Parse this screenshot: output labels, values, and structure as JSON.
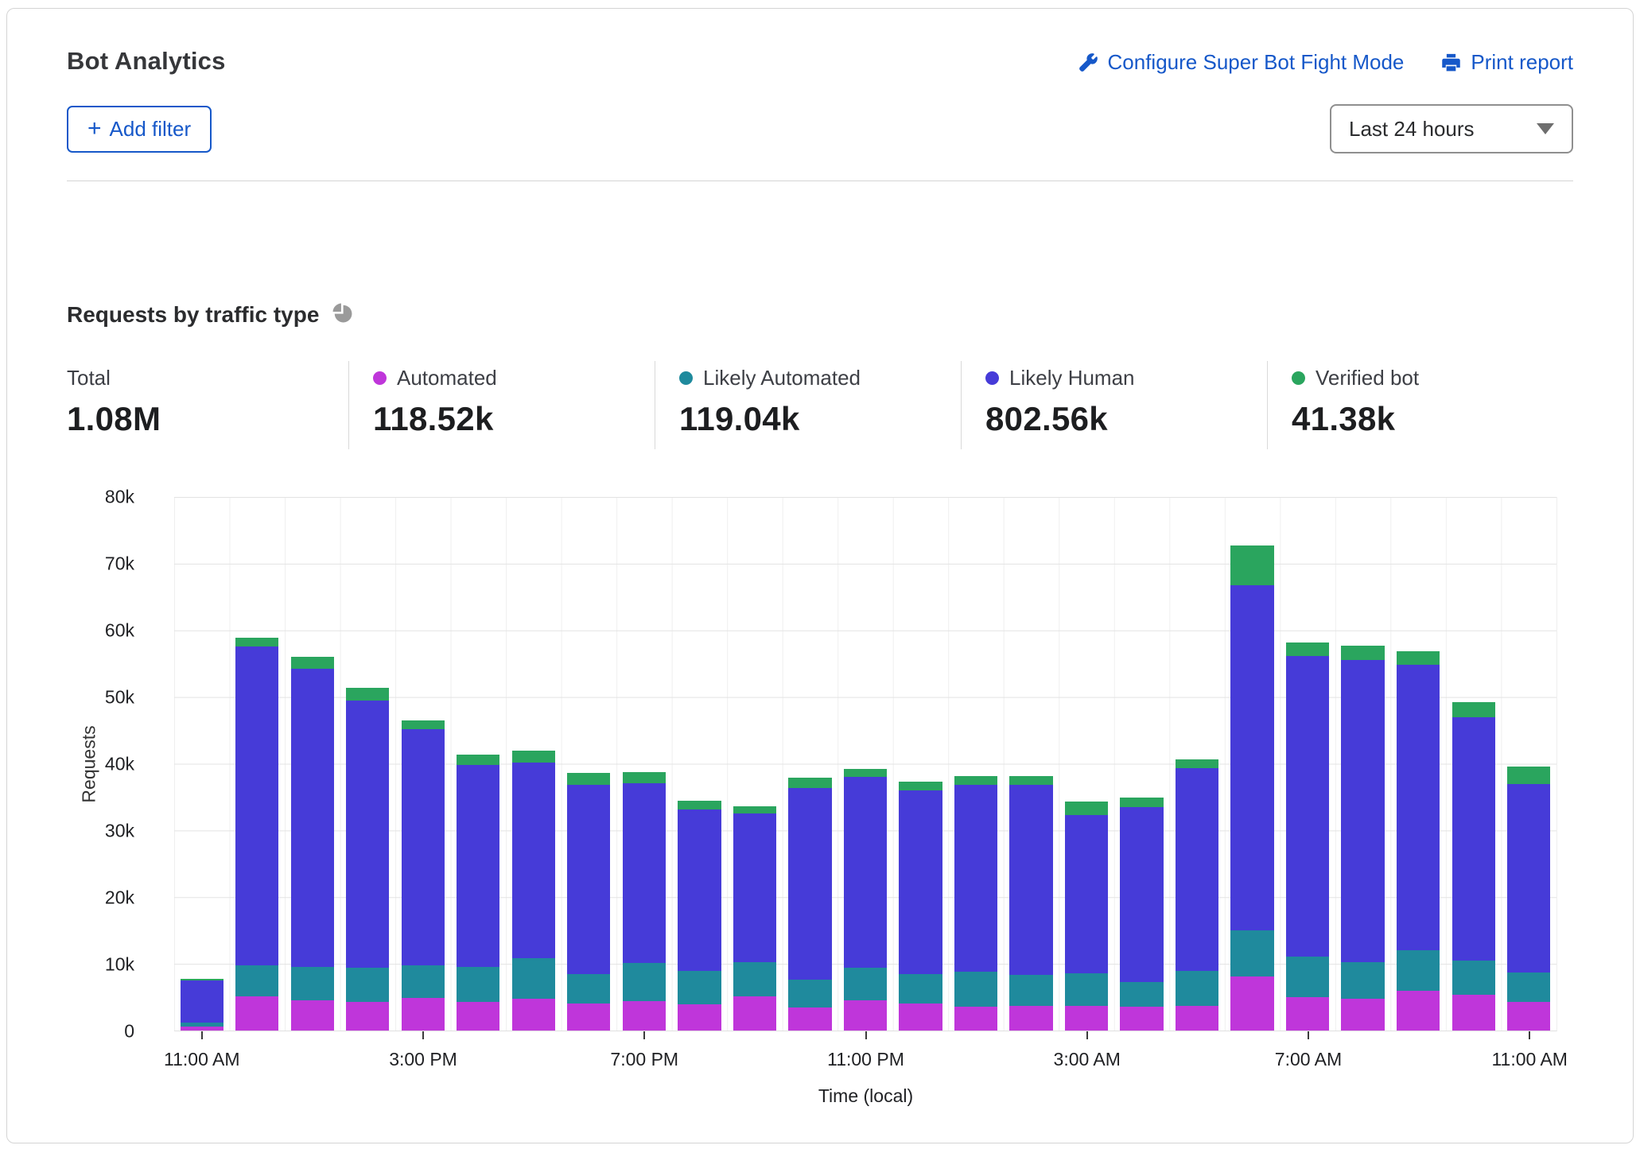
{
  "header": {
    "title": "Bot Analytics",
    "configure_link": "Configure Super Bot Fight Mode",
    "print_link": "Print report",
    "add_filter_plus": "+",
    "add_filter_label": "Add filter",
    "time_range_value": "Last 24 hours"
  },
  "section": {
    "heading": "Requests by traffic type"
  },
  "colors": {
    "automated": "#bf36da",
    "likely_automated": "#1f8a9d",
    "likely_human": "#463bd8",
    "verified_bot": "#2aa55e",
    "link_blue": "#1658c9",
    "pie_icon_gray": "#9a9a9a"
  },
  "stats": [
    {
      "label": "Total",
      "value": "1.08M",
      "color": null
    },
    {
      "label": "Automated",
      "value": "118.52k",
      "color": "#bf36da"
    },
    {
      "label": "Likely Automated",
      "value": "119.04k",
      "color": "#1f8a9d"
    },
    {
      "label": "Likely Human",
      "value": "802.56k",
      "color": "#463bd8"
    },
    {
      "label": "Verified bot",
      "value": "41.38k",
      "color": "#2aa55e"
    }
  ],
  "chart_data": {
    "type": "bar",
    "stacked": true,
    "title": "Requests by traffic type",
    "xlabel": "Time (local)",
    "ylabel": "Requests",
    "value_unit": "thousands of requests (k)",
    "ylim": [
      0,
      80
    ],
    "ytick_labels": [
      "80k",
      "70k",
      "60k",
      "50k",
      "40k",
      "30k",
      "20k",
      "10k",
      "0"
    ],
    "grid": true,
    "legend_position": "stats-row-above-chart",
    "x": [
      "11:00 AM",
      "12:00 PM",
      "1:00 PM",
      "2:00 PM",
      "3:00 PM",
      "4:00 PM",
      "5:00 PM",
      "6:00 PM",
      "7:00 PM",
      "8:00 PM",
      "9:00 PM",
      "10:00 PM",
      "11:00 PM",
      "12:00 AM",
      "1:00 AM",
      "2:00 AM",
      "3:00 AM",
      "4:00 AM",
      "5:00 AM",
      "6:00 AM",
      "7:00 AM",
      "8:00 AM",
      "9:00 AM",
      "10:00 AM",
      "11:00 AM"
    ],
    "xticks": [
      {
        "slot": 0,
        "label": "11:00 AM"
      },
      {
        "slot": 4,
        "label": "3:00 PM"
      },
      {
        "slot": 8,
        "label": "7:00 PM"
      },
      {
        "slot": 12,
        "label": "11:00 PM"
      },
      {
        "slot": 16,
        "label": "3:00 AM"
      },
      {
        "slot": 20,
        "label": "7:00 AM"
      },
      {
        "slot": 24,
        "label": "11:00 AM"
      }
    ],
    "series": [
      {
        "name": "Automated",
        "color": "#bf36da",
        "values": [
          0.6,
          5.1,
          4.5,
          4.3,
          4.9,
          4.3,
          4.8,
          4.0,
          4.4,
          3.9,
          5.1,
          3.5,
          4.5,
          4.0,
          3.6,
          3.7,
          3.7,
          3.6,
          3.7,
          8.1,
          5.0,
          4.8,
          6.0,
          5.4,
          4.3
        ]
      },
      {
        "name": "Likely Automated",
        "color": "#1f8a9d",
        "values": [
          0.6,
          4.7,
          5.1,
          5.1,
          4.9,
          5.2,
          6.0,
          4.5,
          5.7,
          5.0,
          5.1,
          4.1,
          4.9,
          4.5,
          5.2,
          4.6,
          4.9,
          3.7,
          5.3,
          6.9,
          6.1,
          5.4,
          6.0,
          5.1,
          4.4
        ]
      },
      {
        "name": "Likely Human",
        "color": "#463bd8",
        "values": [
          6.3,
          47.8,
          44.7,
          40.1,
          35.4,
          30.3,
          29.4,
          28.4,
          27.0,
          24.3,
          22.3,
          28.8,
          28.6,
          27.5,
          28.1,
          28.5,
          23.7,
          26.2,
          30.3,
          51.8,
          45.1,
          45.4,
          42.9,
          36.5,
          28.3
        ]
      },
      {
        "name": "Verified bot",
        "color": "#2aa55e",
        "values": [
          0.3,
          1.3,
          1.8,
          1.9,
          1.3,
          1.6,
          1.8,
          1.7,
          1.7,
          1.3,
          1.1,
          1.5,
          1.2,
          1.3,
          1.2,
          1.3,
          2.0,
          1.4,
          1.4,
          5.9,
          2.0,
          2.1,
          2.0,
          2.2,
          2.6
        ]
      }
    ]
  }
}
